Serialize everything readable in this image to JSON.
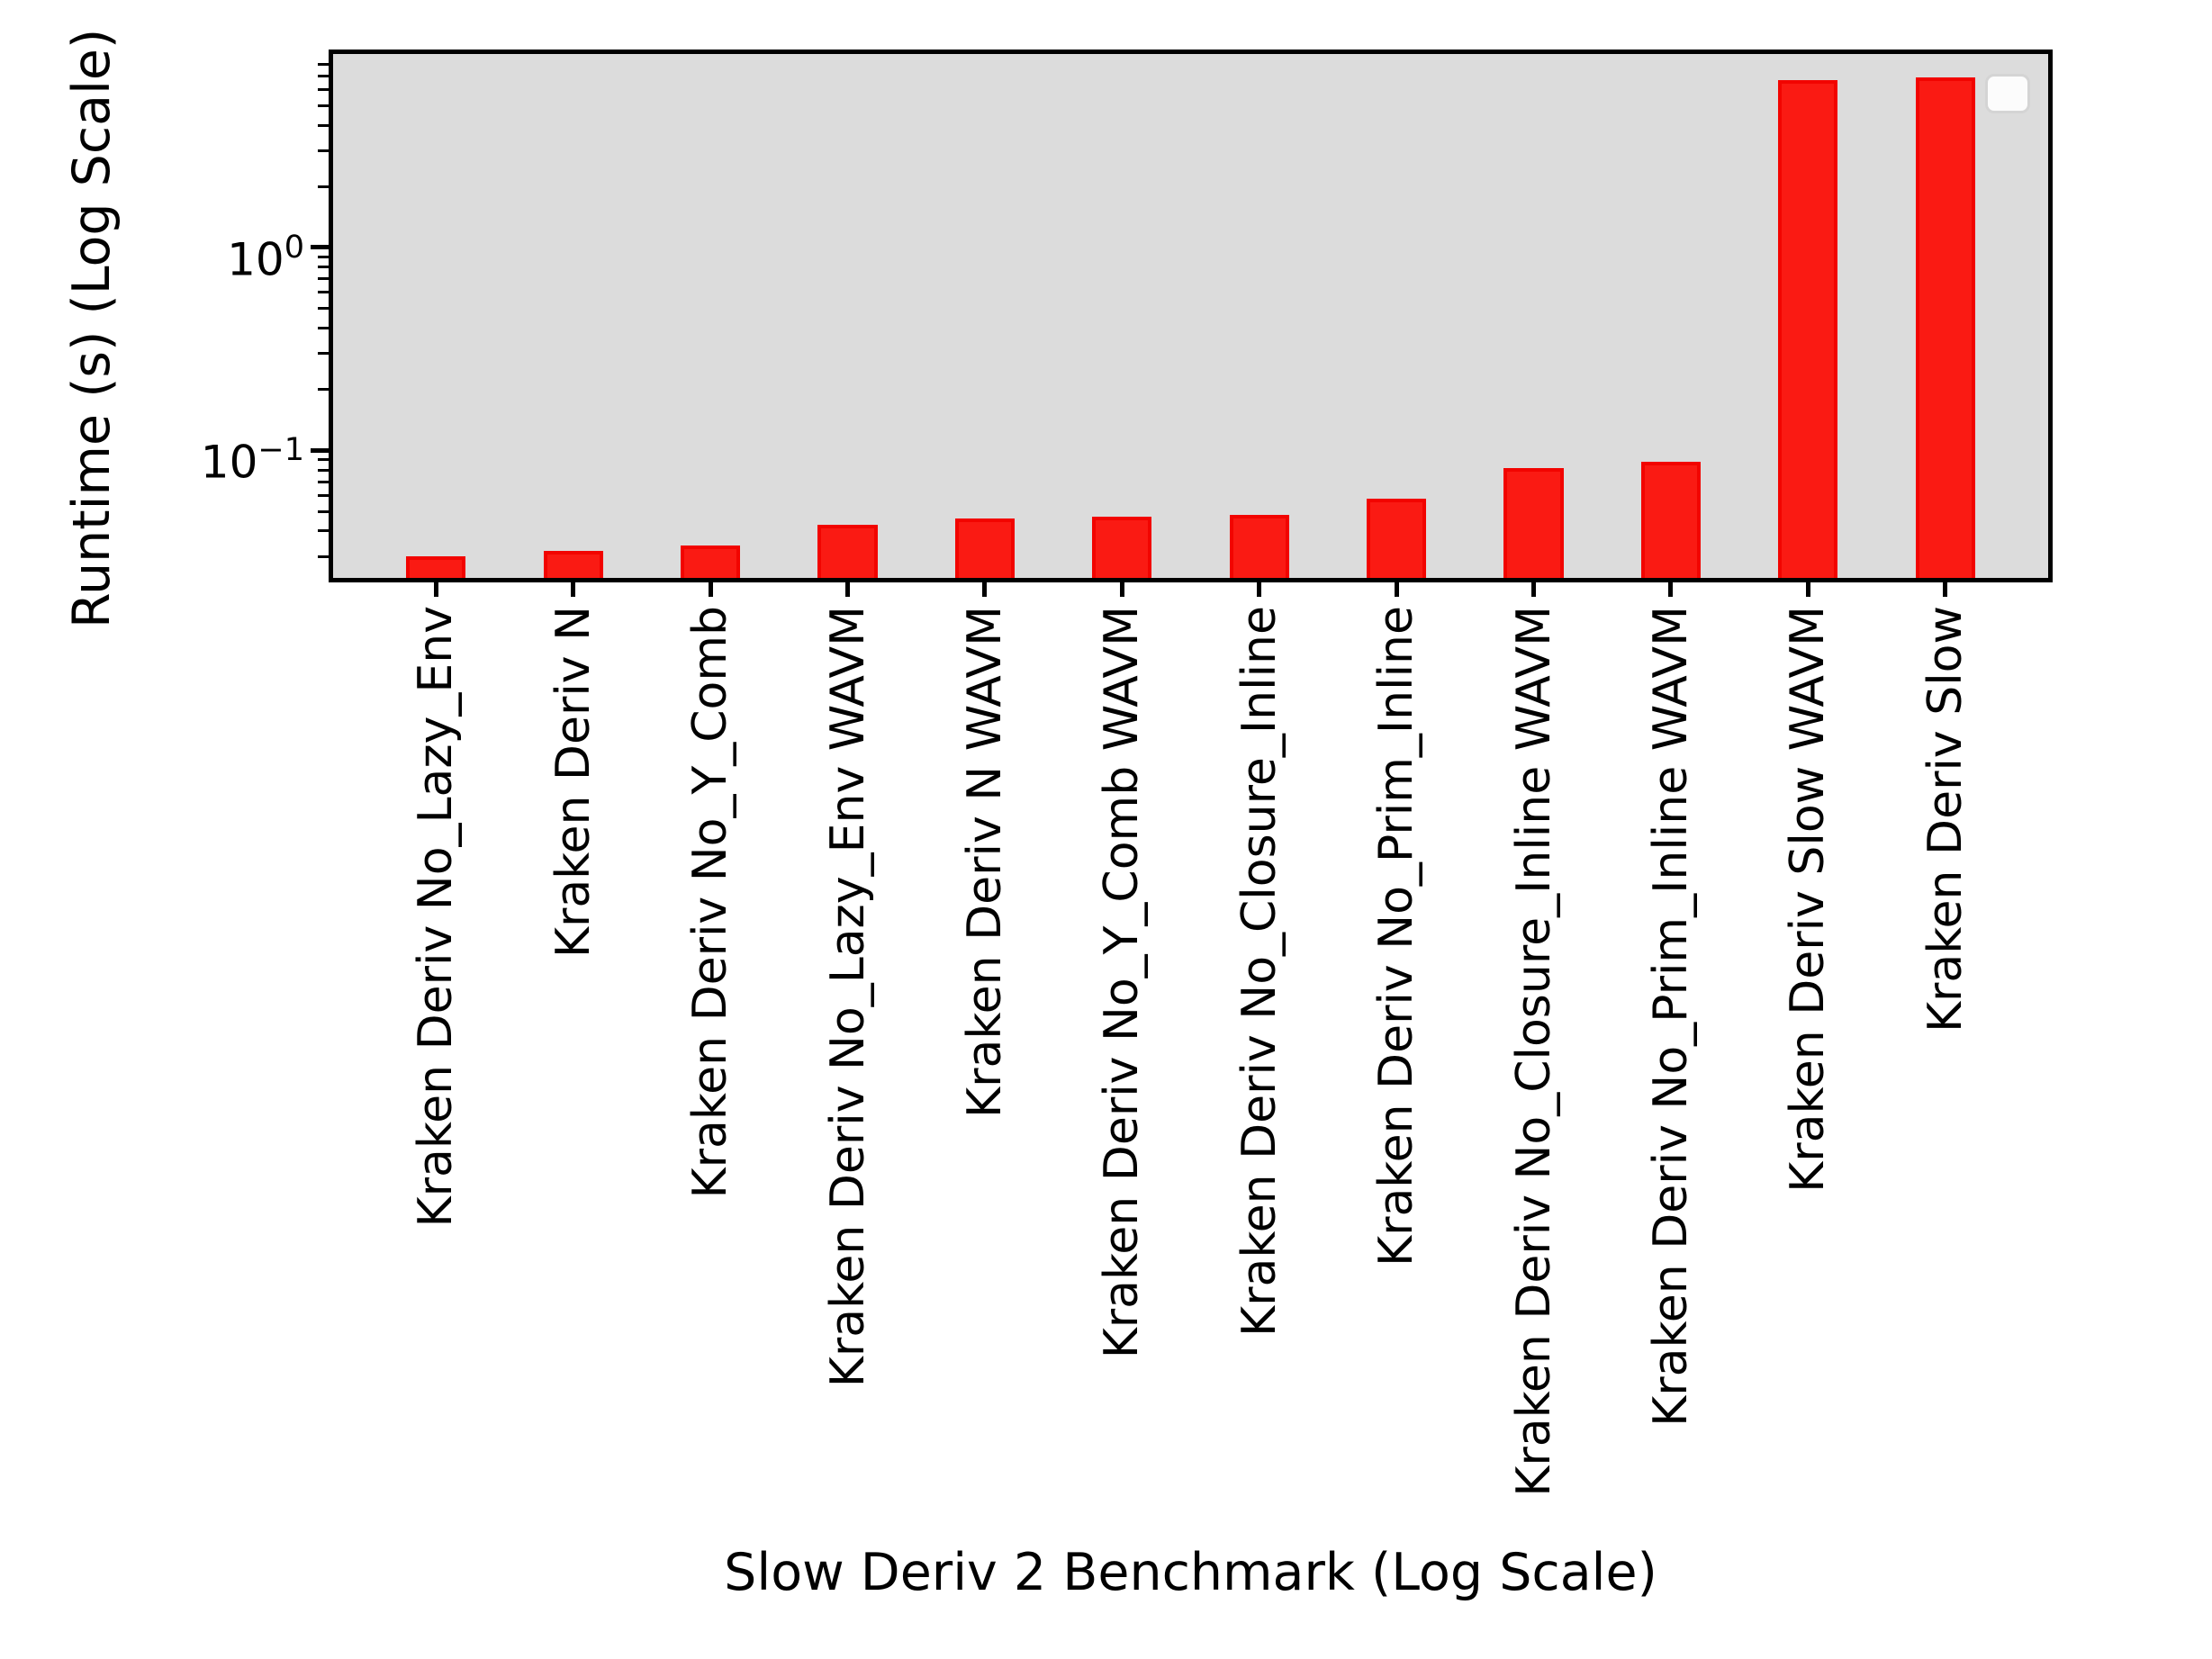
{
  "chart_data": {
    "type": "bar",
    "title": "",
    "xlabel": "Slow Deriv 2 Benchmark (Log Scale)",
    "ylabel": "Runtime (s) (Log Scale)",
    "categories": [
      "Kraken Deriv No_Lazy_Env",
      "Kraken Deriv N",
      "Kraken Deriv No_Y_Comb",
      "Kraken Deriv No_Lazy_Env WAVM",
      "Kraken Deriv N WAVM",
      "Kraken Deriv No_Y_Comb WAVM",
      "Kraken Deriv No_Closure_Inline",
      "Kraken Deriv No_Prim_Inline",
      "Kraken Deriv No_Closure_Inline WAVM",
      "Kraken Deriv No_Prim_Inline WAVM",
      "Kraken Deriv Slow WAVM",
      "Kraken Deriv Slow"
    ],
    "values": [
      0.03,
      0.032,
      0.034,
      0.043,
      0.046,
      0.047,
      0.048,
      0.058,
      0.082,
      0.088,
      6.7,
      6.9
    ],
    "yscale": "log",
    "ylim": [
      0.0235,
      9.0
    ],
    "yticks": [
      {
        "value": 1,
        "base": "10",
        "exp": "0"
      },
      {
        "value": 0.1,
        "base": "10",
        "exp": "−1"
      }
    ],
    "grid": false,
    "legend": {
      "present": true,
      "entries": []
    },
    "colors": {
      "bar_fill": "#fa1a13",
      "bar_edge": "#f20400",
      "plot_background": "#dcdcdc",
      "figure_background": "#ffffff",
      "axis": "#000000"
    }
  }
}
